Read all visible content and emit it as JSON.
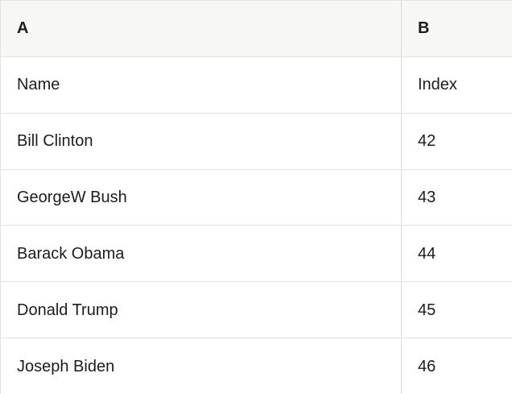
{
  "table": {
    "column_headers": [
      {
        "label": "A"
      },
      {
        "label": "B"
      }
    ],
    "rows": [
      {
        "a": "Name",
        "b": "Index"
      },
      {
        "a": "Bill Clinton",
        "b": "42"
      },
      {
        "a": "GeorgeW Bush",
        "b": "43"
      },
      {
        "a": "Barack Obama",
        "b": "44"
      },
      {
        "a": "Donald Trump",
        "b": "45"
      },
      {
        "a": "Joseph Biden",
        "b": "46"
      }
    ]
  },
  "colors": {
    "header_background": "#f7f7f6",
    "row_border": "#e2e2e0",
    "column_divider": "#dcdcda",
    "text": "#1c1c1c"
  }
}
